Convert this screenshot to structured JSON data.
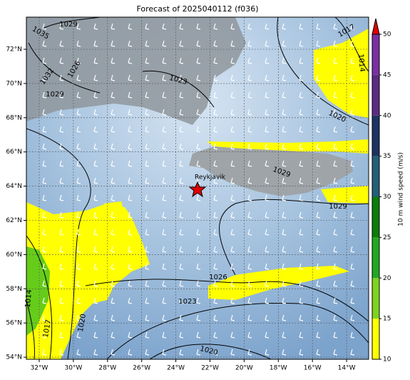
{
  "title": "Forecast of 2025040112 (f036)",
  "map": {
    "lat_labels": [
      "72°N",
      "70°N",
      "68°N",
      "66°N",
      "64°N",
      "62°N",
      "60°N",
      "58°N",
      "56°N",
      "54°N"
    ],
    "lon_labels": [
      "32°W",
      "30°W",
      "28°W",
      "26°W",
      "24°W",
      "22°W",
      "20°W",
      "18°W",
      "16°W",
      "14°W"
    ],
    "contour_labels": [
      "1035",
      "1029",
      "1032",
      "1026",
      "1029",
      "1023",
      "1017",
      "1014",
      "1020",
      "1029",
      "1029",
      "1026",
      "1023",
      "1020",
      "1020",
      "1017",
      "1014"
    ],
    "city": "Reykjavik"
  },
  "colorbar": {
    "label": "10 m wind speed (m/s)",
    "ticks": [
      10,
      15,
      20,
      25,
      30,
      35,
      40,
      45,
      50
    ],
    "colors": [
      "#ffff00",
      "#7fd31f",
      "#22a822",
      "#0a7d0a",
      "#245f78",
      "#1d3463",
      "#5c2a82",
      "#7a2fa3"
    ],
    "over_color": "#e00000"
  }
}
